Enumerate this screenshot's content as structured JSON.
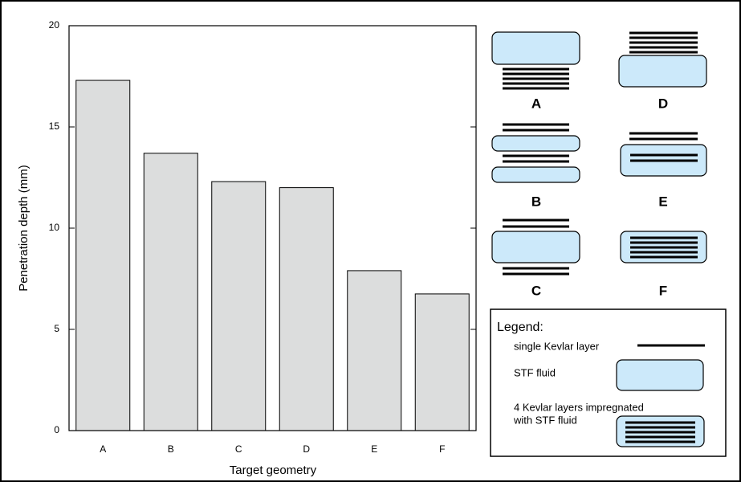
{
  "chart_data": {
    "type": "bar",
    "xlabel": "Target geometry",
    "ylabel": "Penetration depth (mm)",
    "categories": [
      "A",
      "B",
      "C",
      "D",
      "E",
      "F"
    ],
    "values": [
      17.3,
      13.7,
      12.3,
      12.0,
      7.9,
      6.75
    ],
    "color": "#dcdddd",
    "ylim": [
      0,
      20
    ],
    "yticks": [
      0,
      5,
      10,
      15,
      20
    ],
    "legend_title": "Legend:",
    "legend_items": [
      "single Kevlar layer",
      "STF fluid",
      "4 Kevlar layers impregnated",
      "with STF fluid"
    ]
  }
}
